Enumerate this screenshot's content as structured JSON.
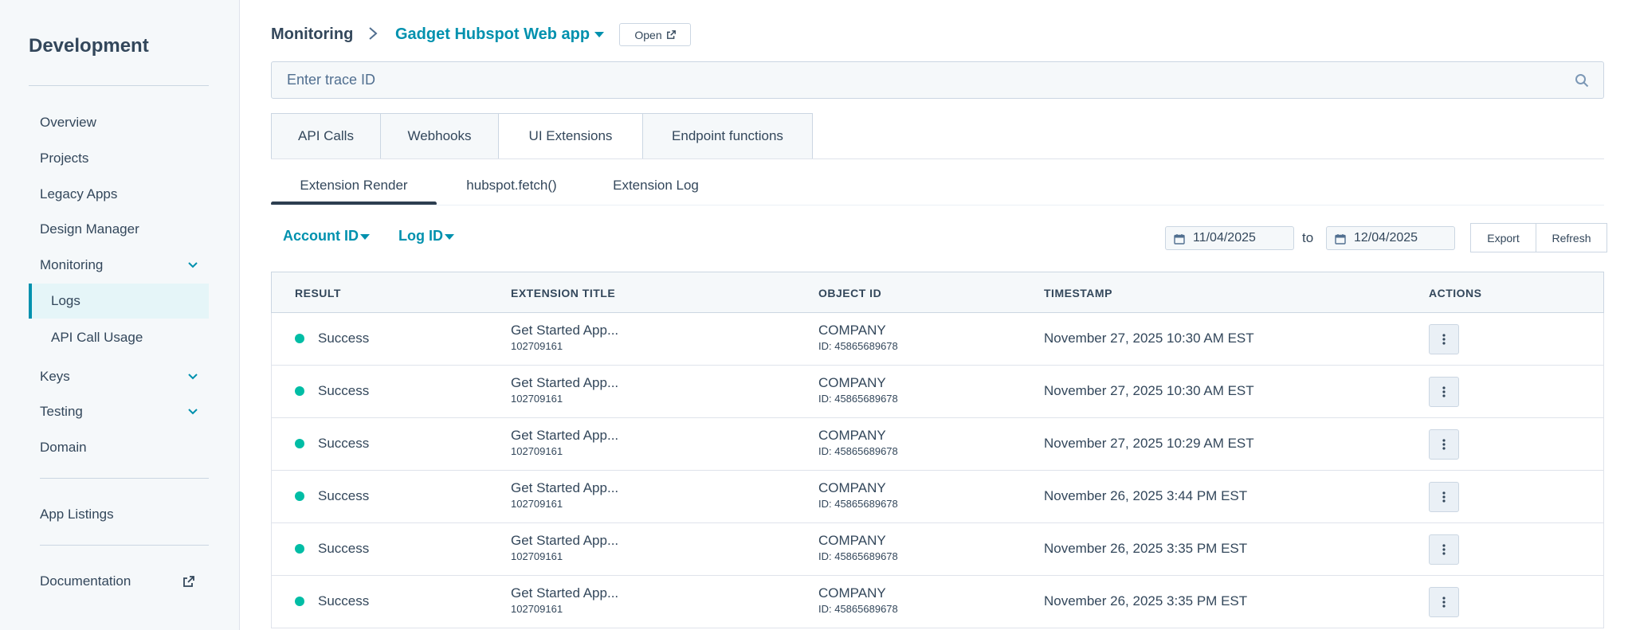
{
  "sidebar": {
    "title": "Development",
    "items": [
      {
        "label": "Overview"
      },
      {
        "label": "Projects"
      },
      {
        "label": "Legacy Apps"
      },
      {
        "label": "Design Manager"
      },
      {
        "label": "Monitoring"
      },
      {
        "label": "Logs"
      },
      {
        "label": "API Call Usage"
      },
      {
        "label": "Keys"
      },
      {
        "label": "Testing"
      },
      {
        "label": "Domain"
      },
      {
        "label": "App Listings"
      },
      {
        "label": "Documentation"
      }
    ]
  },
  "header": {
    "breadcrumb_root": "Monitoring",
    "app_name": "Gadget Hubspot Web app",
    "open_label": "Open"
  },
  "search": {
    "placeholder": "Enter trace ID"
  },
  "tabs": [
    {
      "label": "API Calls"
    },
    {
      "label": "Webhooks"
    },
    {
      "label": "UI Extensions"
    },
    {
      "label": "Endpoint functions"
    }
  ],
  "subtabs": [
    {
      "label": "Extension Render"
    },
    {
      "label": "hubspot.fetch()"
    },
    {
      "label": "Extension Log"
    }
  ],
  "filters": {
    "account_id": "Account ID",
    "log_id": "Log ID",
    "date_from": "11/04/2025",
    "date_to_label": "to",
    "date_to": "12/04/2025",
    "export_label": "Export",
    "refresh_label": "Refresh"
  },
  "table": {
    "headers": [
      "RESULT",
      "EXTENSION TITLE",
      "OBJECT ID",
      "TIMESTAMP",
      "ACTIONS"
    ],
    "rows": [
      {
        "result": "Success",
        "title": "Get Started App...",
        "title_id": "102709161",
        "object": "COMPANY",
        "object_id": "ID: 45865689678",
        "timestamp": "November 27, 2025 10:30 AM EST"
      },
      {
        "result": "Success",
        "title": "Get Started App...",
        "title_id": "102709161",
        "object": "COMPANY",
        "object_id": "ID: 45865689678",
        "timestamp": "November 27, 2025 10:30 AM EST"
      },
      {
        "result": "Success",
        "title": "Get Started App...",
        "title_id": "102709161",
        "object": "COMPANY",
        "object_id": "ID: 45865689678",
        "timestamp": "November 27, 2025 10:29 AM EST"
      },
      {
        "result": "Success",
        "title": "Get Started App...",
        "title_id": "102709161",
        "object": "COMPANY",
        "object_id": "ID: 45865689678",
        "timestamp": "November 26, 2025 3:44 PM EST"
      },
      {
        "result": "Success",
        "title": "Get Started App...",
        "title_id": "102709161",
        "object": "COMPANY",
        "object_id": "ID: 45865689678",
        "timestamp": "November 26, 2025 3:35 PM EST"
      },
      {
        "result": "Success",
        "title": "Get Started App...",
        "title_id": "102709161",
        "object": "COMPANY",
        "object_id": "ID: 45865689678",
        "timestamp": "November 26, 2025 3:35 PM EST"
      }
    ]
  },
  "colors": {
    "accent": "#0091ae",
    "success": "#00bda5",
    "text": "#33475b",
    "sidebar_bg": "#f5f8fa"
  },
  "icons": [
    "chevron-right-icon",
    "caret-down-icon",
    "external-link-icon",
    "search-icon",
    "calendar-icon",
    "chevron-down-icon",
    "more-vertical-icon"
  ]
}
